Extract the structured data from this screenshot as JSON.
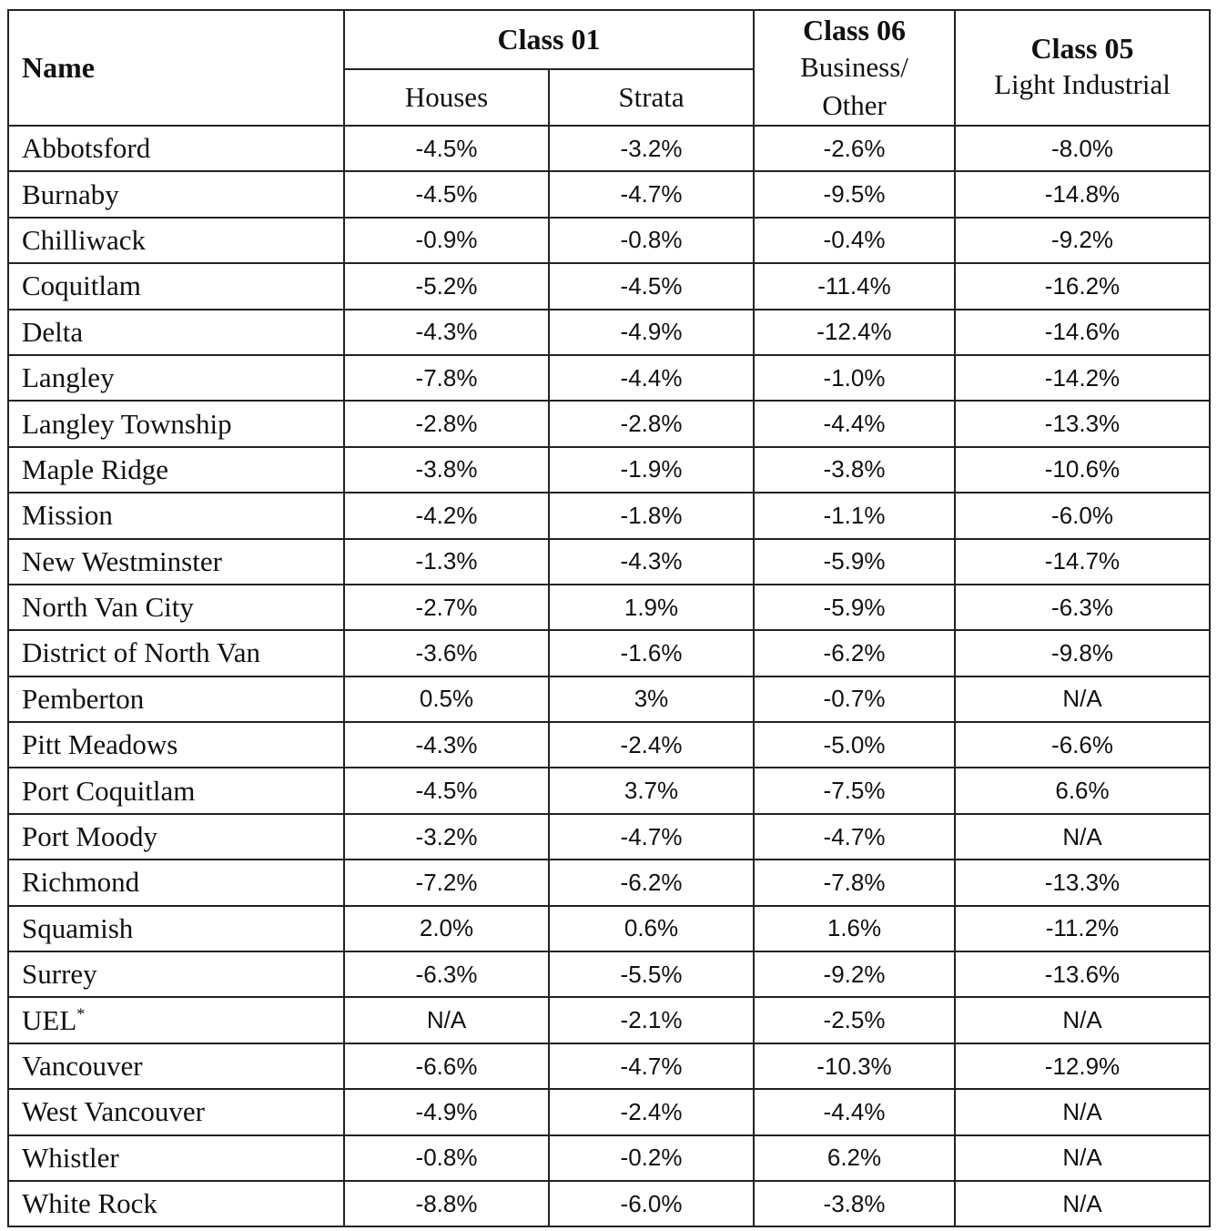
{
  "table": {
    "header": {
      "name": "Name",
      "class01": "Class 01",
      "houses": "Houses",
      "strata": "Strata",
      "class06": {
        "title": "Class 06",
        "lines": [
          "Business/",
          "Other"
        ]
      },
      "class05": {
        "title": "Class 05",
        "subtitle": "Light Industrial"
      }
    },
    "rows": [
      {
        "name": "Abbotsford",
        "values": [
          "-4.5%",
          "-3.2%",
          "-2.6%",
          "-8.0%"
        ]
      },
      {
        "name": "Burnaby",
        "values": [
          "-4.5%",
          "-4.7%",
          "-9.5%",
          "-14.8%"
        ]
      },
      {
        "name": "Chilliwack",
        "values": [
          "-0.9%",
          "-0.8%",
          "-0.4%",
          "-9.2%"
        ]
      },
      {
        "name": "Coquitlam",
        "values": [
          "-5.2%",
          "-4.5%",
          "-11.4%",
          "-16.2%"
        ]
      },
      {
        "name": "Delta",
        "values": [
          "-4.3%",
          "-4.9%",
          "-12.4%",
          "-14.6%"
        ]
      },
      {
        "name": "Langley",
        "values": [
          "-7.8%",
          "-4.4%",
          "-1.0%",
          "-14.2%"
        ]
      },
      {
        "name": "Langley Township",
        "values": [
          "-2.8%",
          "-2.8%",
          "-4.4%",
          "-13.3%"
        ]
      },
      {
        "name": "Maple Ridge",
        "values": [
          "-3.8%",
          "-1.9%",
          "-3.8%",
          "-10.6%"
        ]
      },
      {
        "name": "Mission",
        "values": [
          "-4.2%",
          "-1.8%",
          "-1.1%",
          "-6.0%"
        ]
      },
      {
        "name": "New Westminster",
        "values": [
          "-1.3%",
          "-4.3%",
          "-5.9%",
          "-14.7%"
        ]
      },
      {
        "name": "North Van City",
        "values": [
          "-2.7%",
          "1.9%",
          "-5.9%",
          "-6.3%"
        ]
      },
      {
        "name": "District of North Van",
        "values": [
          "-3.6%",
          "-1.6%",
          "-6.2%",
          "-9.8%"
        ]
      },
      {
        "name": "Pemberton",
        "values": [
          "0.5%",
          "3%",
          "-0.7%",
          "N/A"
        ]
      },
      {
        "name": "Pitt Meadows",
        "values": [
          "-4.3%",
          "-2.4%",
          "-5.0%",
          "-6.6%"
        ]
      },
      {
        "name": "Port Coquitlam",
        "values": [
          "-4.5%",
          "3.7%",
          "-7.5%",
          "6.6%"
        ]
      },
      {
        "name": "Port Moody",
        "values": [
          "-3.2%",
          "-4.7%",
          "-4.7%",
          "N/A"
        ]
      },
      {
        "name": "Richmond",
        "values": [
          "-7.2%",
          "-6.2%",
          "-7.8%",
          "-13.3%"
        ]
      },
      {
        "name": "Squamish",
        "values": [
          "2.0%",
          "0.6%",
          "1.6%",
          "-11.2%"
        ]
      },
      {
        "name": "Surrey",
        "values": [
          "-6.3%",
          "-5.5%",
          "-9.2%",
          "-13.6%"
        ]
      },
      {
        "name": "UEL",
        "mark": "*",
        "values": [
          "N/A",
          "-2.1%",
          "-2.5%",
          "N/A"
        ]
      },
      {
        "name": "Vancouver",
        "values": [
          "-6.6%",
          "-4.7%",
          "-10.3%",
          "-12.9%"
        ]
      },
      {
        "name": "West Vancouver",
        "values": [
          "-4.9%",
          "-2.4%",
          "-4.4%",
          "N/A"
        ]
      },
      {
        "name": "Whistler",
        "values": [
          "-0.8%",
          "-0.2%",
          "6.2%",
          "N/A"
        ]
      },
      {
        "name": "White Rock",
        "values": [
          "-8.8%",
          "-6.0%",
          "-3.8%",
          "N/A"
        ]
      }
    ]
  }
}
